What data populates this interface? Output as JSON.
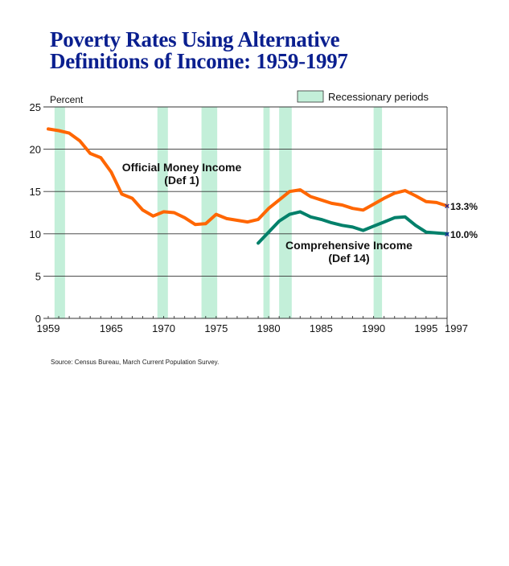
{
  "chart_data": {
    "type": "line",
    "title_lines": [
      "Poverty Rates Using Alternative",
      "Definitions of Income:  1959-1997"
    ],
    "ylabel": "Percent",
    "xlabel": "",
    "xlim": [
      1959,
      1997
    ],
    "ylim": [
      0,
      25
    ],
    "yticks": [
      0,
      5,
      10,
      15,
      20,
      25
    ],
    "xtick_labels": [
      "1959",
      "1965",
      "1970",
      "1975",
      "1980",
      "1985",
      "1990",
      "1995",
      "1997"
    ],
    "xtick_values": [
      1959,
      1965,
      1970,
      1975,
      1980,
      1985,
      1990,
      1995,
      1997
    ],
    "grid": true,
    "legend": {
      "label": "Recessionary periods",
      "color": "#c3efd9",
      "placement": "top-right"
    },
    "recessions": [
      [
        1959.6,
        1960.6
      ],
      [
        1969.4,
        1970.4
      ],
      [
        1973.6,
        1975.1
      ],
      [
        1979.5,
        1980.1
      ],
      [
        1981.0,
        1982.2
      ],
      [
        1990.0,
        1990.8
      ]
    ],
    "series": [
      {
        "name": "Official Money Income (Def 1)",
        "label_lines": [
          "Official Money Income",
          "(Def 1)"
        ],
        "color": "#ff6600",
        "end_label": "13.3%",
        "x": [
          1959,
          1960,
          1961,
          1962,
          1963,
          1964,
          1965,
          1966,
          1967,
          1968,
          1969,
          1970,
          1971,
          1972,
          1973,
          1974,
          1975,
          1976,
          1977,
          1978,
          1979,
          1980,
          1981,
          1982,
          1983,
          1984,
          1985,
          1986,
          1987,
          1988,
          1989,
          1990,
          1991,
          1992,
          1993,
          1994,
          1995,
          1996,
          1997
        ],
        "values": [
          22.4,
          22.2,
          21.9,
          21.0,
          19.5,
          19.0,
          17.3,
          14.7,
          14.2,
          12.8,
          12.1,
          12.6,
          12.5,
          11.9,
          11.1,
          11.2,
          12.3,
          11.8,
          11.6,
          11.4,
          11.7,
          13.0,
          14.0,
          15.0,
          15.2,
          14.4,
          14.0,
          13.6,
          13.4,
          13.0,
          12.8,
          13.5,
          14.2,
          14.8,
          15.1,
          14.5,
          13.8,
          13.7,
          13.3
        ]
      },
      {
        "name": "Comprehensive Income (Def 14)",
        "label_lines": [
          "Comprehensive Income",
          "(Def 14)"
        ],
        "color": "#00806a",
        "end_label": "10.0%",
        "x": [
          1979,
          1980,
          1981,
          1982,
          1983,
          1984,
          1985,
          1986,
          1987,
          1988,
          1989,
          1990,
          1991,
          1992,
          1993,
          1994,
          1995,
          1996,
          1997
        ],
        "values": [
          8.9,
          10.2,
          11.5,
          12.3,
          12.6,
          12.0,
          11.7,
          11.3,
          11.0,
          10.8,
          10.4,
          10.9,
          11.4,
          11.9,
          12.0,
          11.0,
          10.2,
          10.1,
          10.0
        ]
      }
    ],
    "end_marker_color": "#1a2a9a"
  },
  "source_note": "Source:  Census Bureau, March Current Population Survey."
}
